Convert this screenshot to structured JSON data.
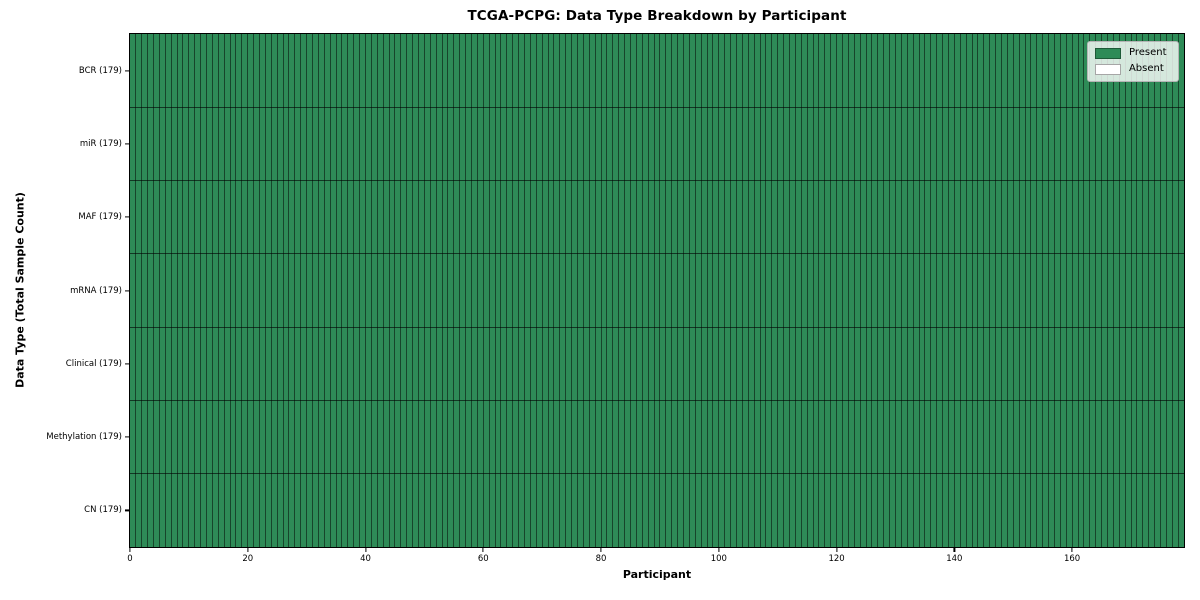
{
  "chart_data": {
    "type": "heatmap",
    "title": "TCGA-PCPG: Data Type Breakdown by Participant",
    "xlabel": "Participant",
    "ylabel": "Data Type (Total Sample Count)",
    "y_categories": [
      "BCR (179)",
      "miR (179)",
      "MAF (179)",
      "mRNA (179)",
      "Clinical (179)",
      "Methylation (179)",
      "CN (179)"
    ],
    "n_participants": 179,
    "xlim": [
      0,
      179
    ],
    "x_ticks": [
      0,
      20,
      40,
      60,
      80,
      100,
      120,
      140,
      160
    ],
    "series": [
      {
        "name": "BCR",
        "total_samples": 179,
        "present_participants": 179,
        "absent_participants": 0
      },
      {
        "name": "miR",
        "total_samples": 179,
        "present_participants": 179,
        "absent_participants": 0
      },
      {
        "name": "MAF",
        "total_samples": 179,
        "present_participants": 179,
        "absent_participants": 0
      },
      {
        "name": "mRNA",
        "total_samples": 179,
        "present_participants": 179,
        "absent_participants": 0
      },
      {
        "name": "Clinical",
        "total_samples": 179,
        "present_participants": 179,
        "absent_participants": 0
      },
      {
        "name": "Methylation",
        "total_samples": 179,
        "present_participants": 179,
        "absent_participants": 0
      },
      {
        "name": "CN",
        "total_samples": 179,
        "present_participants": 179,
        "absent_participants": 0
      }
    ],
    "all_cells_state": "Present",
    "legend": {
      "position": "upper right",
      "entries": [
        {
          "label": "Present",
          "color": "#2e8b57"
        },
        {
          "label": "Absent",
          "color": "#ffffff"
        }
      ]
    },
    "grid": true,
    "colors": {
      "present": "#2e8b57",
      "absent": "#ffffff",
      "cell_edge": "rgba(0,0,0,0.5)",
      "row_edge": "rgba(0,0,0,0.6)",
      "plot_border": "#000000",
      "legend_bg": "rgba(255,255,255,0.8)"
    }
  }
}
